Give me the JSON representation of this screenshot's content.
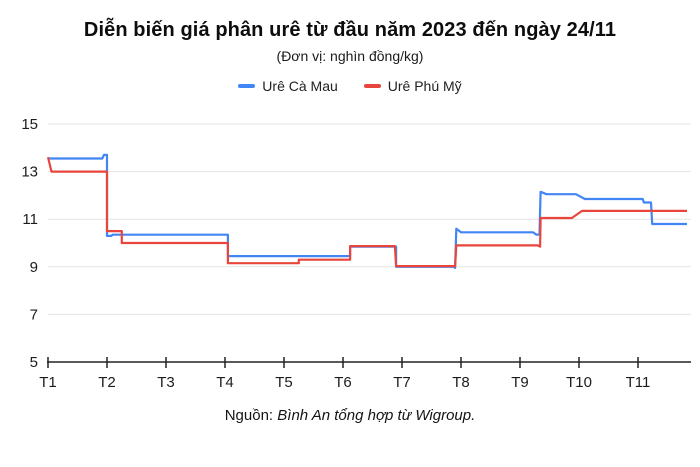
{
  "header": {
    "title": "Diễn biến giá phân urê từ đầu năm 2023 đến ngày 24/11",
    "subtitle": "(Đơn vị: nghìn đồng/kg)"
  },
  "footer": {
    "prefix": "Nguồn:",
    "source": "Bình An tổng hợp từ Wigroup."
  },
  "chart_data": {
    "type": "line",
    "title": "Diễn biến giá phân urê từ đầu năm 2023 đến ngày 24/11",
    "unit": "nghìn đồng/kg",
    "grid": true,
    "legend_position": "top",
    "x_axis": {
      "labels": [
        "T1",
        "T2",
        "T3",
        "T4",
        "T5",
        "T6",
        "T7",
        "T8",
        "T9",
        "T10",
        "T11"
      ],
      "note_end_of_data": "24/11",
      "domain_months": [
        0,
        10.83
      ]
    },
    "y_axis": {
      "ticks": [
        5,
        7,
        9,
        11,
        13,
        15
      ],
      "range": [
        5,
        15
      ]
    },
    "series": [
      {
        "name": "Urê Cà Mau",
        "color": "#4285f4",
        "points": [
          [
            0,
            13.55
          ],
          [
            0.92,
            13.55
          ],
          [
            0.95,
            13.7
          ],
          [
            1.0,
            13.7
          ],
          [
            1.0,
            10.3
          ],
          [
            1.07,
            10.3
          ],
          [
            1.1,
            10.35
          ],
          [
            3.05,
            10.35
          ],
          [
            3.05,
            9.45
          ],
          [
            5.12,
            9.45
          ],
          [
            5.12,
            9.85
          ],
          [
            5.9,
            9.85
          ],
          [
            5.9,
            9.0
          ],
          [
            6.88,
            9.0
          ],
          [
            6.9,
            8.95
          ],
          [
            6.92,
            10.6
          ],
          [
            7.0,
            10.45
          ],
          [
            8.22,
            10.45
          ],
          [
            8.28,
            10.35
          ],
          [
            8.33,
            10.35
          ],
          [
            8.35,
            12.15
          ],
          [
            8.45,
            12.05
          ],
          [
            8.95,
            12.05
          ],
          [
            9.1,
            11.85
          ],
          [
            10.08,
            11.85
          ],
          [
            10.1,
            11.7
          ],
          [
            10.22,
            11.7
          ],
          [
            10.24,
            10.8
          ],
          [
            10.83,
            10.8
          ]
        ]
      },
      {
        "name": "Urê Phú Mỹ",
        "color": "#e8453c",
        "points": [
          [
            0,
            13.6
          ],
          [
            0.06,
            13.0
          ],
          [
            1.0,
            13.0
          ],
          [
            1.0,
            10.5
          ],
          [
            1.25,
            10.5
          ],
          [
            1.25,
            10.0
          ],
          [
            3.05,
            10.0
          ],
          [
            3.05,
            9.15
          ],
          [
            4.25,
            9.15
          ],
          [
            4.25,
            9.3
          ],
          [
            5.12,
            9.3
          ],
          [
            5.12,
            9.87
          ],
          [
            5.88,
            9.87
          ],
          [
            5.9,
            9.03
          ],
          [
            6.9,
            9.03
          ],
          [
            6.92,
            9.9
          ],
          [
            8.3,
            9.9
          ],
          [
            8.34,
            9.85
          ],
          [
            8.35,
            11.05
          ],
          [
            8.88,
            11.05
          ],
          [
            9.05,
            11.35
          ],
          [
            10.83,
            11.35
          ]
        ]
      }
    ]
  }
}
